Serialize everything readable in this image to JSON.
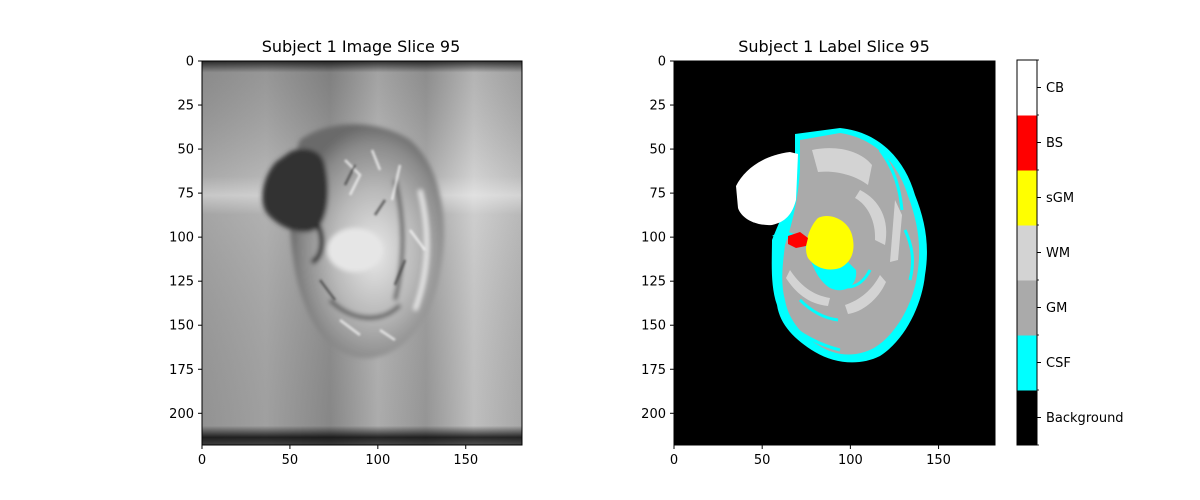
{
  "panels": [
    {
      "title": "Subject 1 Image Slice 95",
      "x_ticks": [
        "0",
        "50",
        "100",
        "150"
      ],
      "y_ticks": [
        "0",
        "25",
        "50",
        "75",
        "100",
        "125",
        "150",
        "175",
        "200"
      ],
      "colormap": "gray"
    },
    {
      "title": "Subject 1 Label Slice 95",
      "x_ticks": [
        "0",
        "50",
        "100",
        "150"
      ],
      "y_ticks": [
        "0",
        "25",
        "50",
        "75",
        "100",
        "125",
        "150",
        "175",
        "200"
      ],
      "colormap": "segmentation labels"
    }
  ],
  "colorbar": {
    "labels": [
      "Background",
      "CSF",
      "GM",
      "WM",
      "sGM",
      "BS",
      "CB"
    ],
    "colors": [
      "#000000",
      "#00ffff",
      "#aaaaaa",
      "#d3d3d3",
      "#ffff00",
      "#ff0000",
      "#ffffff"
    ]
  },
  "chart_data": [
    {
      "type": "heatmap",
      "title": "Subject 1 Image Slice 95",
      "xlim": [
        0,
        182
      ],
      "ylim": [
        218,
        0
      ],
      "x_ticks": [
        0,
        50,
        100,
        150
      ],
      "y_ticks": [
        0,
        25,
        50,
        75,
        100,
        125,
        150,
        175,
        200
      ],
      "colormap": "gray"
    },
    {
      "type": "heatmap",
      "title": "Subject 1 Label Slice 95",
      "xlim": [
        0,
        182
      ],
      "ylim": [
        218,
        0
      ],
      "x_ticks": [
        0,
        50,
        100,
        150
      ],
      "y_ticks": [
        0,
        25,
        50,
        75,
        100,
        125,
        150,
        175,
        200
      ],
      "categories": [
        "Background",
        "CSF",
        "GM",
        "WM",
        "sGM",
        "BS",
        "CB"
      ]
    }
  ]
}
